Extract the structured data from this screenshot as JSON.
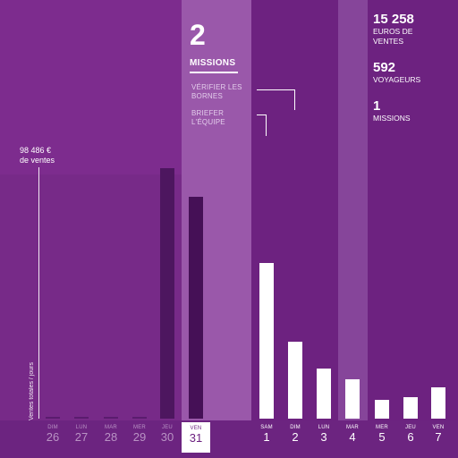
{
  "total": {
    "value": "98 486 €",
    "unit": "de ventes",
    "axis_label": "Ventes totales / jours"
  },
  "selected": {
    "count": "2",
    "label": "MISSIONS",
    "tasks": [
      "VÉRIFIER LES\nBORNES",
      "BRIEFER\nL'ÉQUIPE"
    ]
  },
  "stats": [
    {
      "value": "15 258",
      "label": "EUROS DE\nVENTES"
    },
    {
      "value": "592",
      "label": "VOYAGEURS"
    },
    {
      "value": "1",
      "label": "MISSIONS"
    }
  ],
  "days": [
    {
      "wd": "DIM",
      "dn": "26",
      "state": "past",
      "bar": 0
    },
    {
      "wd": "LUN",
      "dn": "27",
      "state": "past",
      "bar": 0
    },
    {
      "wd": "MAR",
      "dn": "28",
      "state": "past",
      "bar": 0
    },
    {
      "wd": "MER",
      "dn": "29",
      "state": "past",
      "bar": 0
    },
    {
      "wd": "JEU",
      "dn": "30",
      "state": "past",
      "bar": 0.95
    },
    {
      "wd": "VEN",
      "dn": "31",
      "state": "selected",
      "bar": 0.84
    },
    {
      "wd": "SAM",
      "dn": "1",
      "state": "future",
      "bar": 0.59
    },
    {
      "wd": "DIM",
      "dn": "2",
      "state": "future",
      "bar": 0.29
    },
    {
      "wd": "LUN",
      "dn": "3",
      "state": "future",
      "bar": 0.19
    },
    {
      "wd": "MAR",
      "dn": "4",
      "state": "future",
      "bar": 0.15
    },
    {
      "wd": "MER",
      "dn": "5",
      "state": "future",
      "bar": 0.07
    },
    {
      "wd": "JEU",
      "dn": "6",
      "state": "future",
      "bar": 0.08
    },
    {
      "wd": "VEN",
      "dn": "7",
      "state": "future",
      "bar": 0.12
    }
  ],
  "colors": {
    "past_bar": "#521868",
    "selected_bar": "#451056",
    "future_bar": "#ffffff",
    "dark_bar": "#4d165f"
  }
}
